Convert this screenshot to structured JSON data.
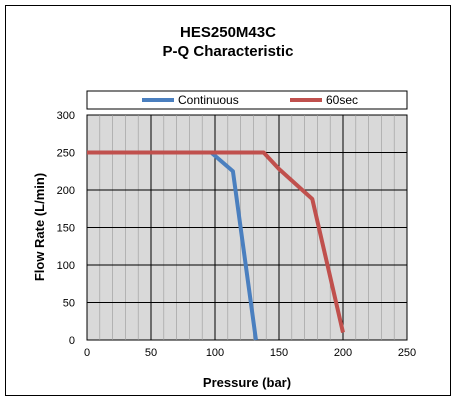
{
  "chart_data": {
    "type": "line",
    "title": "HES250M43C",
    "subtitle": "P-Q Characteristic",
    "xlabel": "Pressure (bar)",
    "ylabel": "Flow Rate (L/min)",
    "xlim": [
      0,
      250
    ],
    "ylim": [
      0,
      300
    ],
    "x_ticks": [
      0,
      50,
      100,
      150,
      200,
      250
    ],
    "y_ticks": [
      0,
      50,
      100,
      150,
      200,
      250,
      300
    ],
    "grid": true,
    "legend_position": "top",
    "series": [
      {
        "name": "Continuous",
        "color": "#4a7fbf",
        "points": [
          [
            0,
            250
          ],
          [
            97,
            250
          ],
          [
            114,
            225
          ],
          [
            132,
            0
          ]
        ]
      },
      {
        "name": "60sec",
        "color": "#c0504d",
        "points": [
          [
            0,
            250
          ],
          [
            138,
            250
          ],
          [
            150,
            228
          ],
          [
            176,
            188
          ],
          [
            200,
            10
          ]
        ]
      }
    ]
  }
}
